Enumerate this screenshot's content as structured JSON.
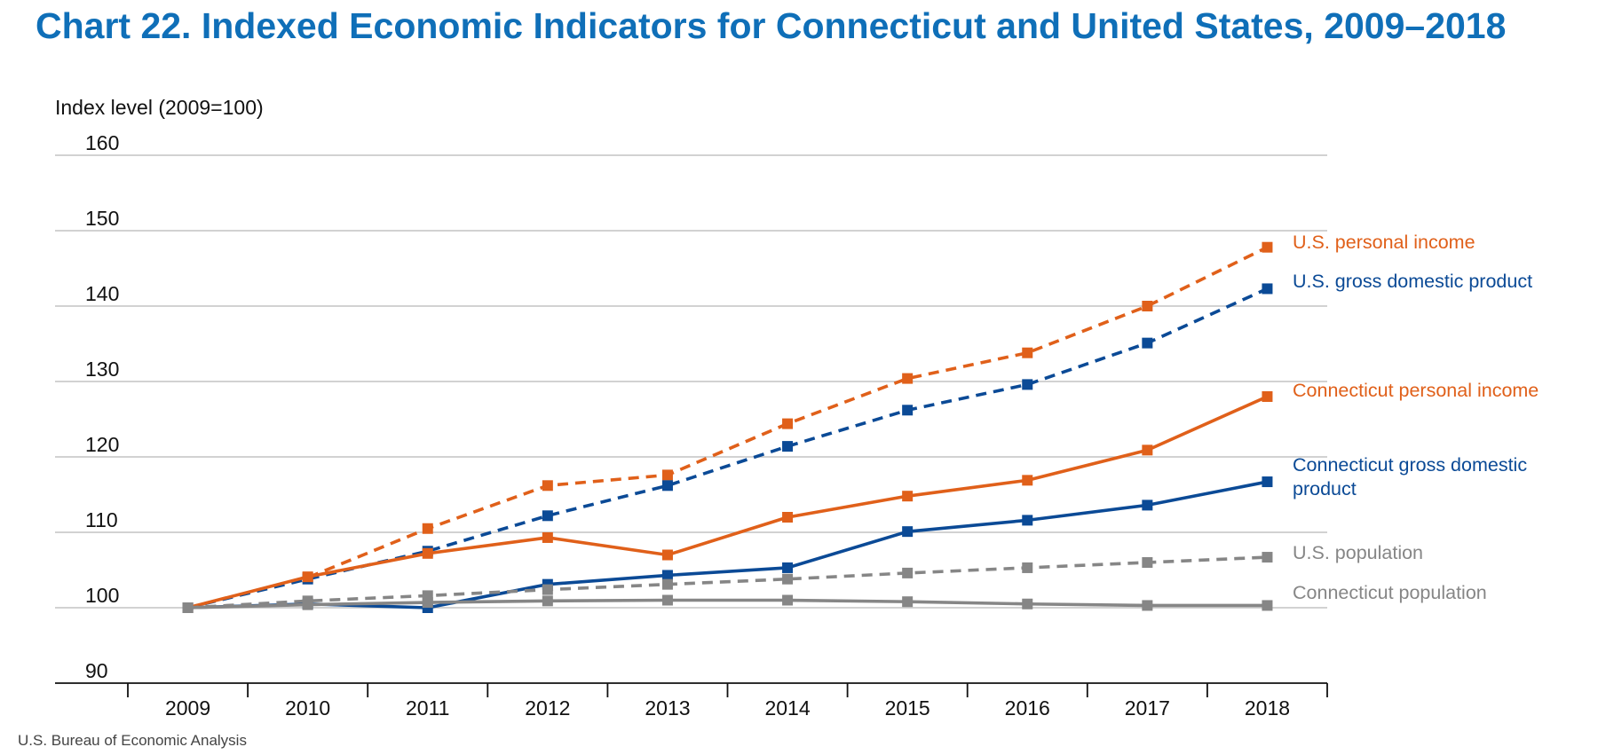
{
  "chart_data": {
    "type": "line",
    "title": "Chart 22. Indexed Economic Indicators for Connecticut and United States, 2009–2018",
    "ylabel": "Index level (2009=100)",
    "xlabel": "",
    "source": "U.S. Bureau of Economic Analysis",
    "ylim": [
      90,
      160
    ],
    "yticks": [
      90,
      100,
      110,
      120,
      130,
      140,
      150,
      160
    ],
    "grid": true,
    "legend": "direct labels at right end of each line",
    "x": [
      "2009",
      "2010",
      "2011",
      "2012",
      "2013",
      "2014",
      "2015",
      "2016",
      "2017",
      "2018"
    ],
    "series": [
      {
        "name": "U.S. personal income",
        "color": "#e0601a",
        "dashed": true,
        "values": [
          100,
          104,
          110.5,
          116.2,
          117.6,
          124.4,
          130.4,
          133.8,
          140,
          147.8
        ]
      },
      {
        "name": "U.S. gross domestic product",
        "color": "#0b4a96",
        "dashed": true,
        "values": [
          100,
          103.8,
          107.5,
          112.2,
          116.2,
          121.4,
          126.2,
          129.6,
          135.1,
          142.3
        ]
      },
      {
        "name": "Connecticut personal income",
        "color": "#e0601a",
        "dashed": false,
        "values": [
          100,
          104.1,
          107.2,
          109.3,
          107,
          112,
          114.8,
          116.9,
          120.9,
          128
        ]
      },
      {
        "name": "Connecticut gross domestic product",
        "color": "#0b4a96",
        "dashed": false,
        "values": [
          100,
          100.5,
          100,
          103.1,
          104.3,
          105.3,
          110.1,
          111.6,
          113.6,
          116.7
        ]
      },
      {
        "name": "U.S. population",
        "color": "#868686",
        "dashed": true,
        "values": [
          100,
          100.9,
          101.6,
          102.4,
          103.1,
          103.8,
          104.6,
          105.3,
          106,
          106.7
        ]
      },
      {
        "name": "Connecticut population",
        "color": "#868686",
        "dashed": false,
        "values": [
          100,
          100.4,
          100.7,
          100.9,
          101,
          101,
          100.8,
          100.5,
          100.3,
          100.3
        ]
      }
    ]
  }
}
